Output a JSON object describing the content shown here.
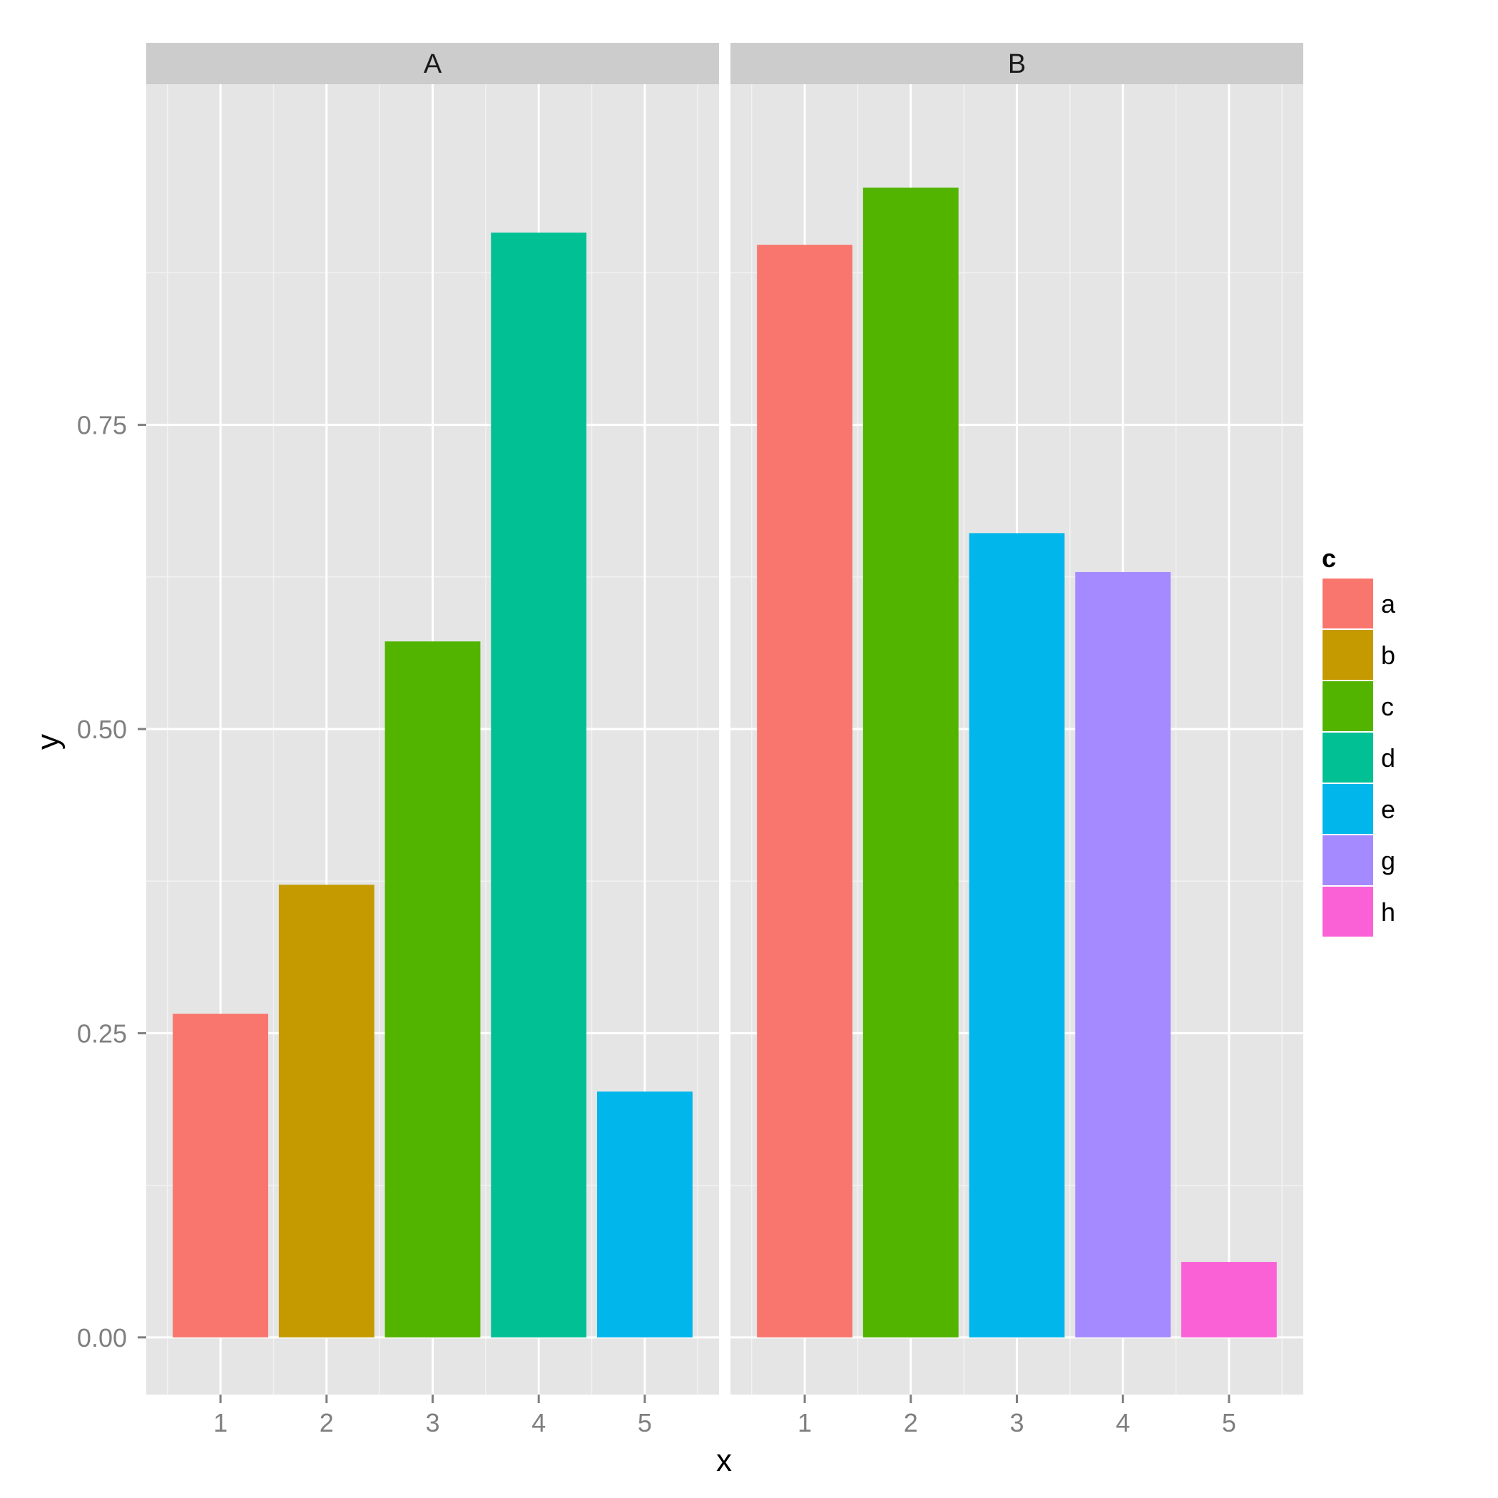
{
  "chart_data": {
    "type": "bar",
    "xlabel": "x",
    "ylabel": "y",
    "ylim": [
      -0.047,
      1.03
    ],
    "y_ticks": [
      "0.00",
      "0.25",
      "0.50",
      "0.75"
    ],
    "x_ticks": [
      "1",
      "2",
      "3",
      "4",
      "5"
    ],
    "grid": true,
    "legend": {
      "title": "c",
      "position": "right",
      "entries": [
        {
          "label": "a",
          "color": "#F8766D"
        },
        {
          "label": "b",
          "color": "#C49A00"
        },
        {
          "label": "c",
          "color": "#53B400"
        },
        {
          "label": "d",
          "color": "#00C094"
        },
        {
          "label": "e",
          "color": "#00B6EB"
        },
        {
          "label": "g",
          "color": "#A58AFF"
        },
        {
          "label": "h",
          "color": "#FB61D7"
        }
      ]
    },
    "facets": [
      {
        "label": "A",
        "bars": [
          {
            "x": 1,
            "y": 0.266,
            "c": "a"
          },
          {
            "x": 2,
            "y": 0.372,
            "c": "b"
          },
          {
            "x": 3,
            "y": 0.572,
            "c": "c"
          },
          {
            "x": 4,
            "y": 0.908,
            "c": "d"
          },
          {
            "x": 5,
            "y": 0.202,
            "c": "e"
          }
        ]
      },
      {
        "label": "B",
        "bars": [
          {
            "x": 1,
            "y": 0.898,
            "c": "a"
          },
          {
            "x": 2,
            "y": 0.945,
            "c": "c"
          },
          {
            "x": 3,
            "y": 0.661,
            "c": "e"
          },
          {
            "x": 4,
            "y": 0.629,
            "c": "g"
          },
          {
            "x": 5,
            "y": 0.062,
            "c": "h"
          }
        ]
      }
    ]
  }
}
